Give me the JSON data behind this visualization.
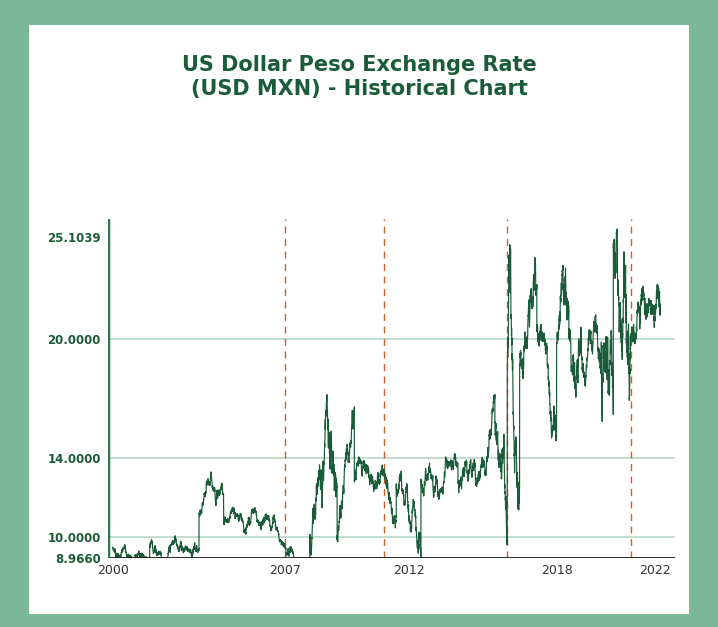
{
  "title": "US Dollar Peso Exchange Rate\n(USD MXN) - Historical Chart",
  "title_color": "#1a5c38",
  "line_color": "#1a5c38",
  "background_color": "#ffffff",
  "outer_background": "#7ab898",
  "card_background": "#ffffff",
  "grid_color": "#b8d8c8",
  "dashed_vline_color": "#c8622a",
  "left_border_color": "#2d7a50",
  "yticks": [
    8.966,
    10.0,
    14.0,
    20.0,
    25.1039
  ],
  "ytick_labels": [
    "8.9660",
    "10.0000",
    "14.0000",
    "20.0000",
    "25.1039"
  ],
  "xticks": [
    2000,
    2007,
    2012,
    2018,
    2022
  ],
  "xtick_labels": [
    "2000",
    "2007",
    "2012",
    "2018",
    "2022"
  ],
  "vlines": [
    2007,
    2011,
    2016,
    2021
  ],
  "ylim": [
    8.966,
    26.0
  ],
  "xlim": [
    1999.8,
    2022.8
  ]
}
